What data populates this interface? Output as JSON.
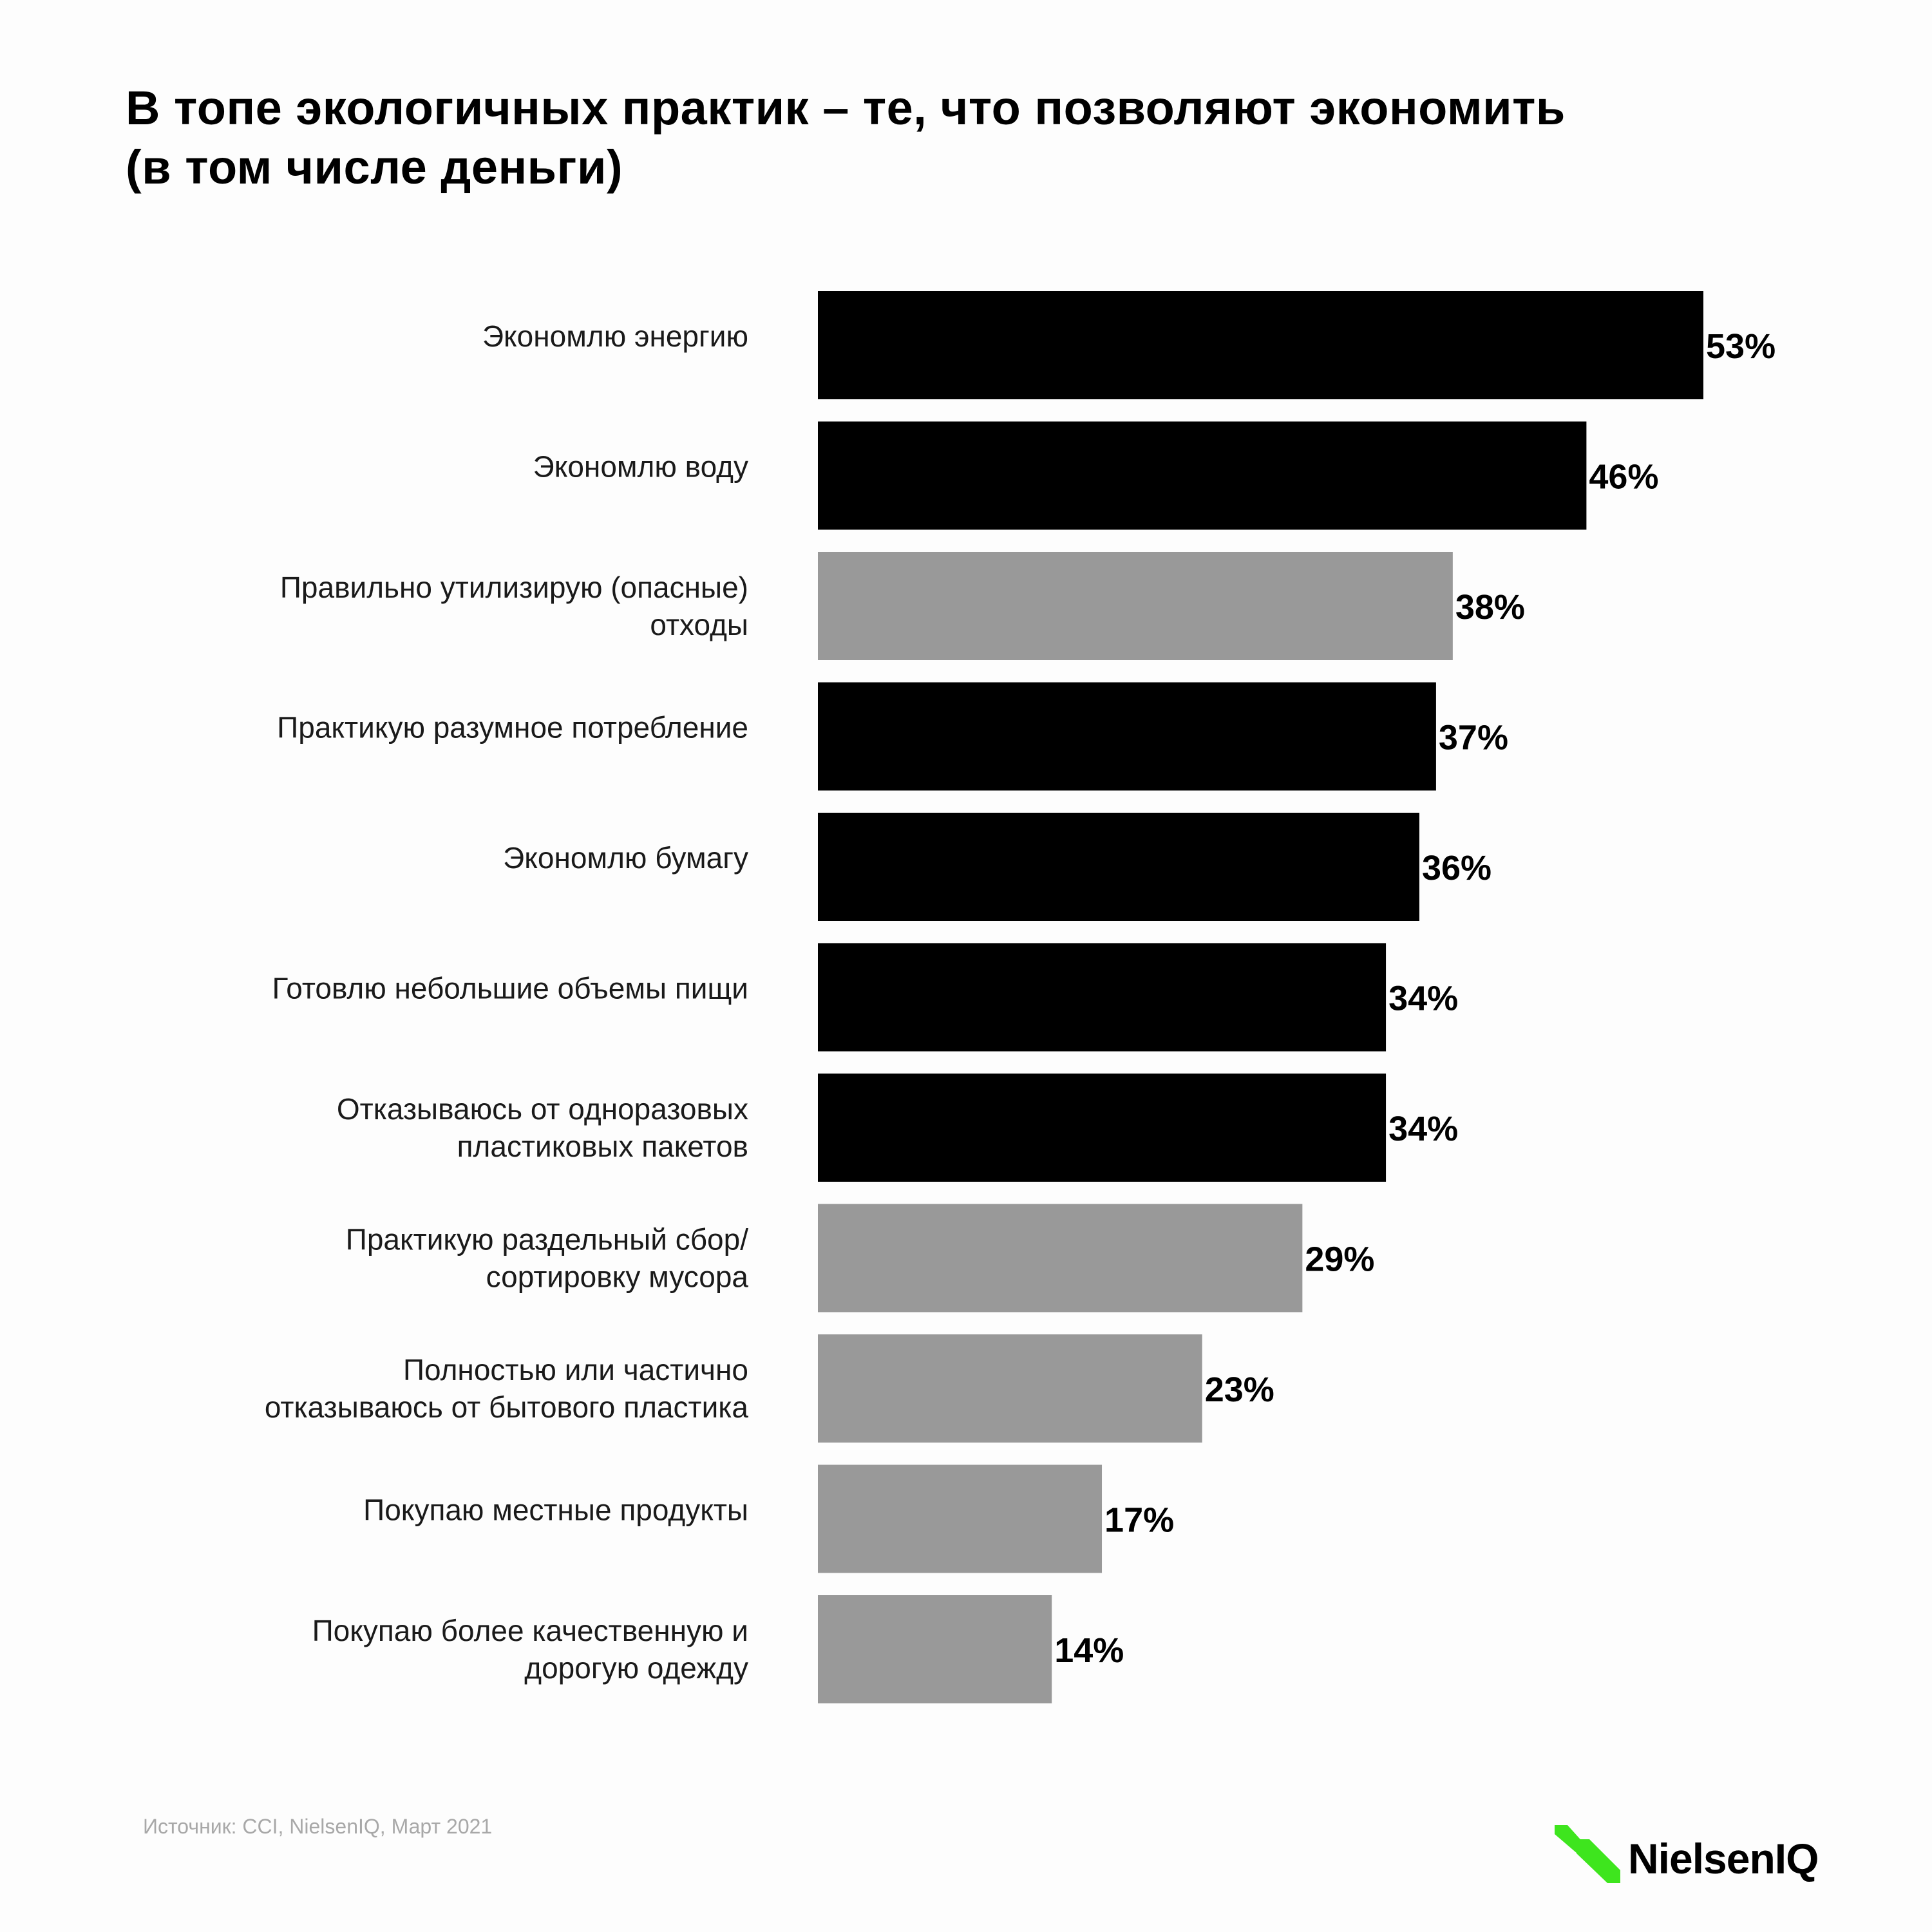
{
  "title_lines": [
    "В топе экологичных практик – те, что позволяют экономить",
    "(в том числе деньги)"
  ],
  "source": "Источник: CCI, NielsenIQ, Март 2021",
  "logo": {
    "text": "NielsenIQ",
    "mark": "nielseniq-logo-mark",
    "accent": "#3ee51e"
  },
  "colors": {
    "primary": "#000000",
    "secondary": "#999999",
    "label": "#1a1a1a"
  },
  "chart_data": {
    "type": "bar",
    "orientation": "horizontal",
    "categories": [
      [
        "Экономлю энергию"
      ],
      [
        "Экономлю воду"
      ],
      [
        "Правильно утилизирую (опасные)",
        "отходы"
      ],
      [
        "Практикую разумное потребление"
      ],
      [
        "Экономлю бумагу"
      ],
      [
        "Готовлю небольшие объемы пищи"
      ],
      [
        "Отказываюсь от одноразовых",
        "пластиковых пакетов"
      ],
      [
        "Практикую раздельный сбор/",
        "сортировку мусора"
      ],
      [
        "Полностью или частично",
        "отказываюсь от бытового пластика"
      ],
      [
        "Покупаю местные продукты"
      ],
      [
        "Покупаю более качественную и",
        "дорогую одежду"
      ]
    ],
    "values": [
      53,
      46,
      38,
      37,
      36,
      34,
      34,
      29,
      23,
      17,
      14
    ],
    "value_labels": [
      "53%",
      "46%",
      "38%",
      "37%",
      "36%",
      "34%",
      "34%",
      "29%",
      "23%",
      "17%",
      "14%"
    ],
    "bar_colors": [
      "#000000",
      "#000000",
      "#999999",
      "#000000",
      "#000000",
      "#000000",
      "#000000",
      "#999999",
      "#999999",
      "#999999",
      "#999999"
    ],
    "unit": "%",
    "xlim": [
      0,
      53
    ],
    "grid": false,
    "legend": "none"
  }
}
